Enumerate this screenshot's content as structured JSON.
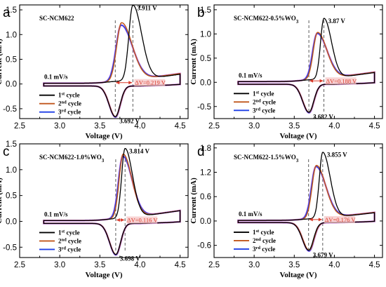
{
  "colors": {
    "cycle1": "#000000",
    "cycle2": "#c0561c",
    "cycle3": "#1f3fe6",
    "pink": "#d070e8",
    "dv": "#d93a2b",
    "dvband": "#f6c6c6"
  },
  "legend_labels": [
    {
      "num": "1",
      "sup": "st",
      "word": " cycle"
    },
    {
      "num": "2",
      "sup": "nd",
      "word": " cycle"
    },
    {
      "num": "3",
      "sup": "rd",
      "word": " cycle"
    }
  ],
  "chart_data": [
    {
      "letter": "a",
      "type": "line",
      "title": "SC-NCM622",
      "xlabel": "Voltage (V)",
      "ylabel": "Current (mA)",
      "xlim": [
        2.5,
        4.6
      ],
      "ylim": [
        -0.7,
        1.6
      ],
      "xticks": [
        "2.5",
        "3.0",
        "3.5",
        "4.0",
        "4.5"
      ],
      "yticks": [
        "-0.5",
        "0.0",
        "0.5",
        "1.0",
        "1.5"
      ],
      "ytick_values": [
        -0.5,
        0.0,
        0.5,
        1.0,
        1.5
      ],
      "scan_rate": "0.1 mV/s",
      "ox_label": "3.911 V",
      "red_label": "3.692 V",
      "delta_v": "ΔV=0.219 V",
      "dashed_x": [
        3.692,
        3.911
      ],
      "series": [
        {
          "name": "1st cycle",
          "ox_peak": [
            3.911,
            1.55
          ],
          "ox_width": 0.07,
          "red_peak": [
            3.692,
            -0.62
          ],
          "tail": 0.12
        },
        {
          "name": "2nd cycle",
          "ox_peak": [
            3.77,
            1.2
          ],
          "ox_width": 0.085,
          "red_peak": [
            3.695,
            -0.62
          ],
          "tail": 0.12
        },
        {
          "name": "3rd cycle",
          "ox_peak": [
            3.765,
            1.15
          ],
          "ox_width": 0.09,
          "red_peak": [
            3.695,
            -0.63
          ],
          "tail": 0.12
        }
      ]
    },
    {
      "letter": "b",
      "type": "line",
      "title": "SC-NCM622-0.5%WO",
      "title_sub": "3",
      "xlabel": "Voltage (V)",
      "ylabel": "Current (mA)",
      "xlim": [
        2.5,
        4.6
      ],
      "ylim": [
        -0.75,
        1.6
      ],
      "xticks": [
        "2.5",
        "3.0",
        "3.5",
        "4.0",
        "4.5"
      ],
      "yticks": [
        "-0.5",
        "0.0",
        "0.5",
        "1.0",
        "1.5"
      ],
      "ytick_values": [
        -0.5,
        0.0,
        0.5,
        1.0,
        1.5
      ],
      "scan_rate": "0.1 mV/s",
      "ox_label": "3.87 V",
      "red_label": "3.682 V",
      "delta_v": "ΔV=0.188 V",
      "dashed_x": [
        3.682,
        3.87
      ],
      "series": [
        {
          "name": "1st cycle",
          "ox_peak": [
            3.87,
            1.28
          ],
          "ox_width": 0.06,
          "red_peak": [
            3.682,
            -0.58
          ],
          "tail": 0.12
        },
        {
          "name": "2nd cycle",
          "ox_peak": [
            3.79,
            0.99
          ],
          "ox_width": 0.075,
          "red_peak": [
            3.685,
            -0.58
          ],
          "tail": 0.12
        },
        {
          "name": "3rd cycle",
          "ox_peak": [
            3.785,
            0.97
          ],
          "ox_width": 0.08,
          "red_peak": [
            3.685,
            -0.59
          ],
          "tail": 0.12
        }
      ]
    },
    {
      "letter": "c",
      "type": "line",
      "title": "SC-NCM622-1.0%WO",
      "title_sub": "3",
      "xlabel": "Voltage (V)",
      "ylabel": "Current (mA)",
      "xlim": [
        2.5,
        4.6
      ],
      "ylim": [
        -0.7,
        1.5
      ],
      "xticks": [
        "2.5",
        "3.0",
        "3.5",
        "4.0",
        "4.5"
      ],
      "yticks": [
        "-0.5",
        "0.0",
        "0.5",
        "1.0",
        "1.5"
      ],
      "ytick_values": [
        -0.5,
        0.0,
        0.5,
        1.0,
        1.5
      ],
      "scan_rate": "0.1 mV/s",
      "ox_label": "3.814 V",
      "red_label": "3.698 V",
      "delta_v": "ΔV=0.116 V",
      "dashed_x": [
        3.698,
        3.814
      ],
      "series": [
        {
          "name": "1st cycle",
          "ox_peak": [
            3.814,
            1.37
          ],
          "ox_width": 0.06,
          "red_peak": [
            3.698,
            -0.6
          ],
          "tail": 0.12
        },
        {
          "name": "2nd cycle",
          "ox_peak": [
            3.79,
            1.26
          ],
          "ox_width": 0.07,
          "red_peak": [
            3.7,
            -0.6
          ],
          "tail": 0.12
        },
        {
          "name": "3rd cycle",
          "ox_peak": [
            3.785,
            1.22
          ],
          "ox_width": 0.075,
          "red_peak": [
            3.7,
            -0.61
          ],
          "tail": 0.12
        }
      ]
    },
    {
      "letter": "d",
      "type": "line",
      "title": "SC-NCM622-1.5%WO",
      "title_sub": "3",
      "xlabel": "Voltage (V)",
      "ylabel": "Current (mA)",
      "xlim": [
        2.5,
        4.6
      ],
      "ylim": [
        -0.9,
        1.9
      ],
      "xticks": [
        "2.5",
        "3.0",
        "3.5",
        "4.0",
        "4.5"
      ],
      "yticks": [
        "-0.6",
        "0.0",
        "0.6",
        "1.2",
        "1.8"
      ],
      "ytick_values": [
        -0.6,
        0.0,
        0.6,
        1.2,
        1.8
      ],
      "scan_rate": "0.1 mV/s",
      "ox_label": "3.855 V",
      "red_label": "3.679 V",
      "delta_v": "ΔV=0.176 V",
      "dashed_x": [
        3.679,
        3.855
      ],
      "series": [
        {
          "name": "1st cycle",
          "ox_peak": [
            3.855,
            1.65
          ],
          "ox_width": 0.06,
          "red_peak": [
            3.679,
            -0.68
          ],
          "tail": 0.14
        },
        {
          "name": "2nd cycle",
          "ox_peak": [
            3.775,
            1.33
          ],
          "ox_width": 0.075,
          "red_peak": [
            3.685,
            -0.68
          ],
          "tail": 0.14
        },
        {
          "name": "3rd cycle",
          "ox_peak": [
            3.77,
            1.3
          ],
          "ox_width": 0.08,
          "red_peak": [
            3.685,
            -0.7
          ],
          "tail": 0.14
        }
      ]
    }
  ]
}
